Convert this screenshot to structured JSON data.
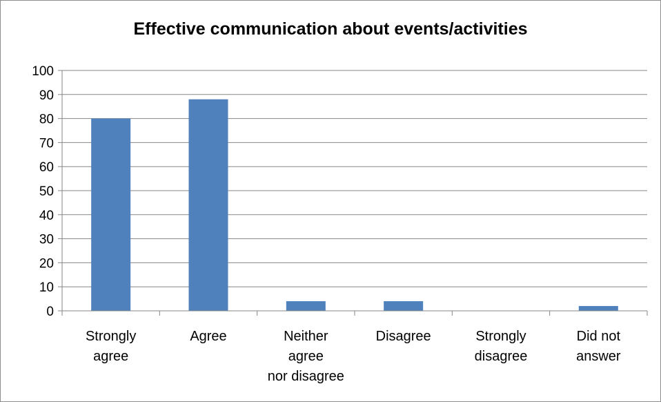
{
  "chart_data": {
    "type": "bar",
    "title": "Effective communication about events/activities",
    "categories": [
      [
        "Strongly",
        "agree"
      ],
      [
        "Agree"
      ],
      [
        "Neither",
        "agree",
        "nor disagree"
      ],
      [
        "Disagree"
      ],
      [
        "Strongly",
        "disagree"
      ],
      [
        "Did not",
        "answer"
      ]
    ],
    "values": [
      80,
      88,
      4,
      4,
      0,
      2
    ],
    "ylim": [
      0,
      100
    ],
    "yticks": [
      "0",
      "10",
      "20",
      "30",
      "40",
      "50",
      "60",
      "70",
      "80",
      "90",
      "100"
    ],
    "grid": true,
    "legend": "none",
    "bar_color": "#4f81bd",
    "grid_color": "#868686"
  }
}
